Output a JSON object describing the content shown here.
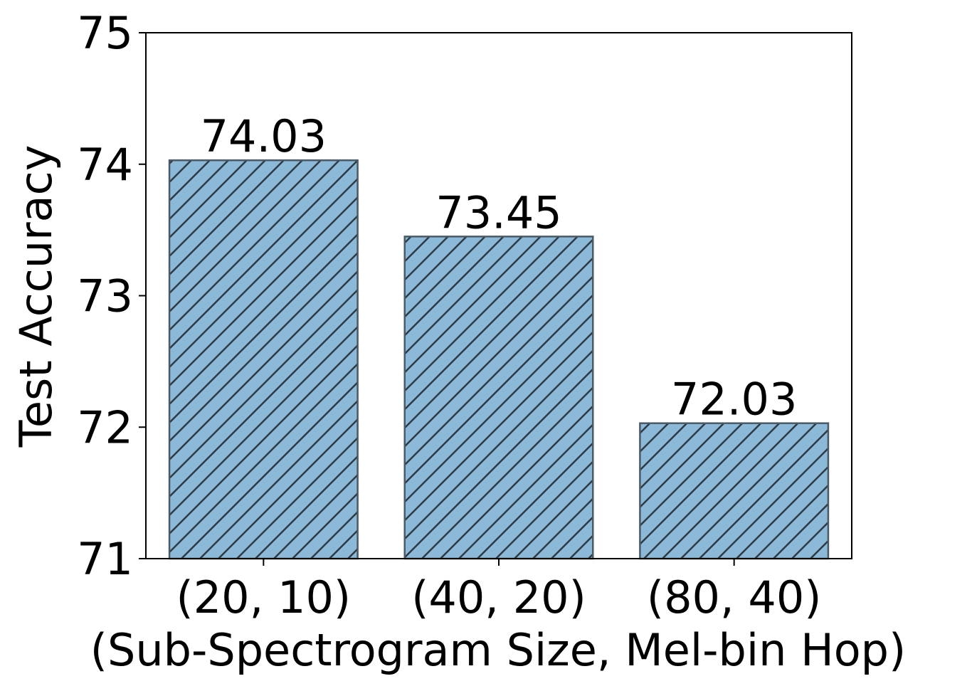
{
  "chart_data": {
    "type": "bar",
    "categories": [
      "(20, 10)",
      "(40, 20)",
      "(80, 40)"
    ],
    "values": [
      74.03,
      73.45,
      72.03
    ],
    "data_labels": [
      "74.03",
      "73.45",
      "72.03"
    ],
    "xlabel": "(Sub-Spectrogram Size, Mel-bin Hop)",
    "ylabel": "Test Accuracy",
    "ylim": [
      71,
      75
    ],
    "yticks": [
      "71",
      "72",
      "73",
      "74",
      "75"
    ],
    "grid": false,
    "legend": "none",
    "bar_color": "#8db9d9",
    "bar_edge_color": "#4a5a66",
    "hatch": "diagonal"
  }
}
